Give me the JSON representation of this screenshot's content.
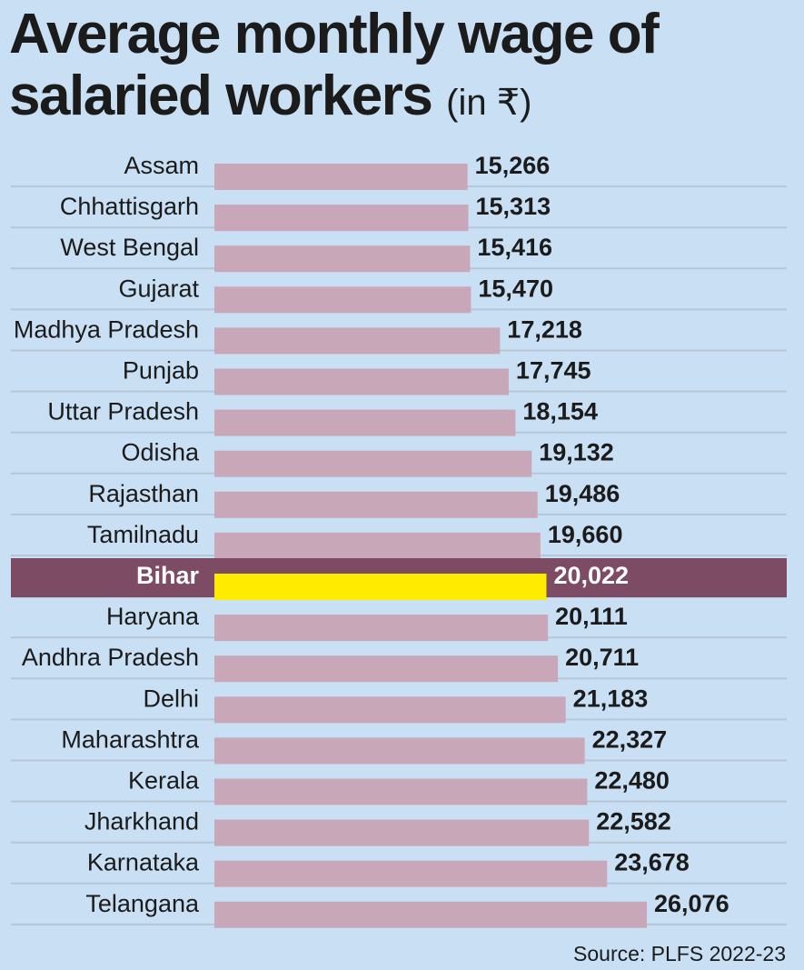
{
  "title": "Average monthly wage of salaried workers",
  "title_line1": "Average monthly wage of",
  "title_line2": "salaried workers",
  "title_unit": "(in ₹)",
  "source": "Source: PLFS 2022-23",
  "colors": {
    "background": "#c9dff3",
    "bar": "#c7a7b8",
    "highlight_band": "#7d4b63",
    "highlight_bar": "#ffeb00",
    "grid": "#b6c6d6",
    "text": "#1b1b1b"
  },
  "chart_data": {
    "type": "bar",
    "orientation": "horizontal",
    "title": "Average monthly wage of salaried workers (in ₹)",
    "highlight": "Bihar",
    "grid": true,
    "categories": [
      "Assam",
      "Chhattisgarh",
      "West Bengal",
      "Gujarat",
      "Madhya Pradesh",
      "Punjab",
      "Uttar Pradesh",
      "Odisha",
      "Rajasthan",
      "Tamilnadu",
      "Bihar",
      "Haryana",
      "Andhra Pradesh",
      "Delhi",
      "Maharashtra",
      "Kerala",
      "Jharkhand",
      "Karnataka",
      "Telangana"
    ],
    "values": [
      15266,
      15313,
      15416,
      15470,
      17218,
      17745,
      18154,
      19132,
      19486,
      19660,
      20022,
      20111,
      20711,
      21183,
      22327,
      22480,
      22582,
      23678,
      26076
    ],
    "value_labels": [
      "15,266",
      "15,313",
      "15,416",
      "15,470",
      "17,218",
      "17,745",
      "18,154",
      "19,132",
      "19,486",
      "19,660",
      "20,022",
      "20,111",
      "20,711",
      "21,183",
      "22,327",
      "22,480",
      "22,582",
      "23,678",
      "26,076"
    ],
    "xlim": [
      0,
      26076
    ]
  }
}
